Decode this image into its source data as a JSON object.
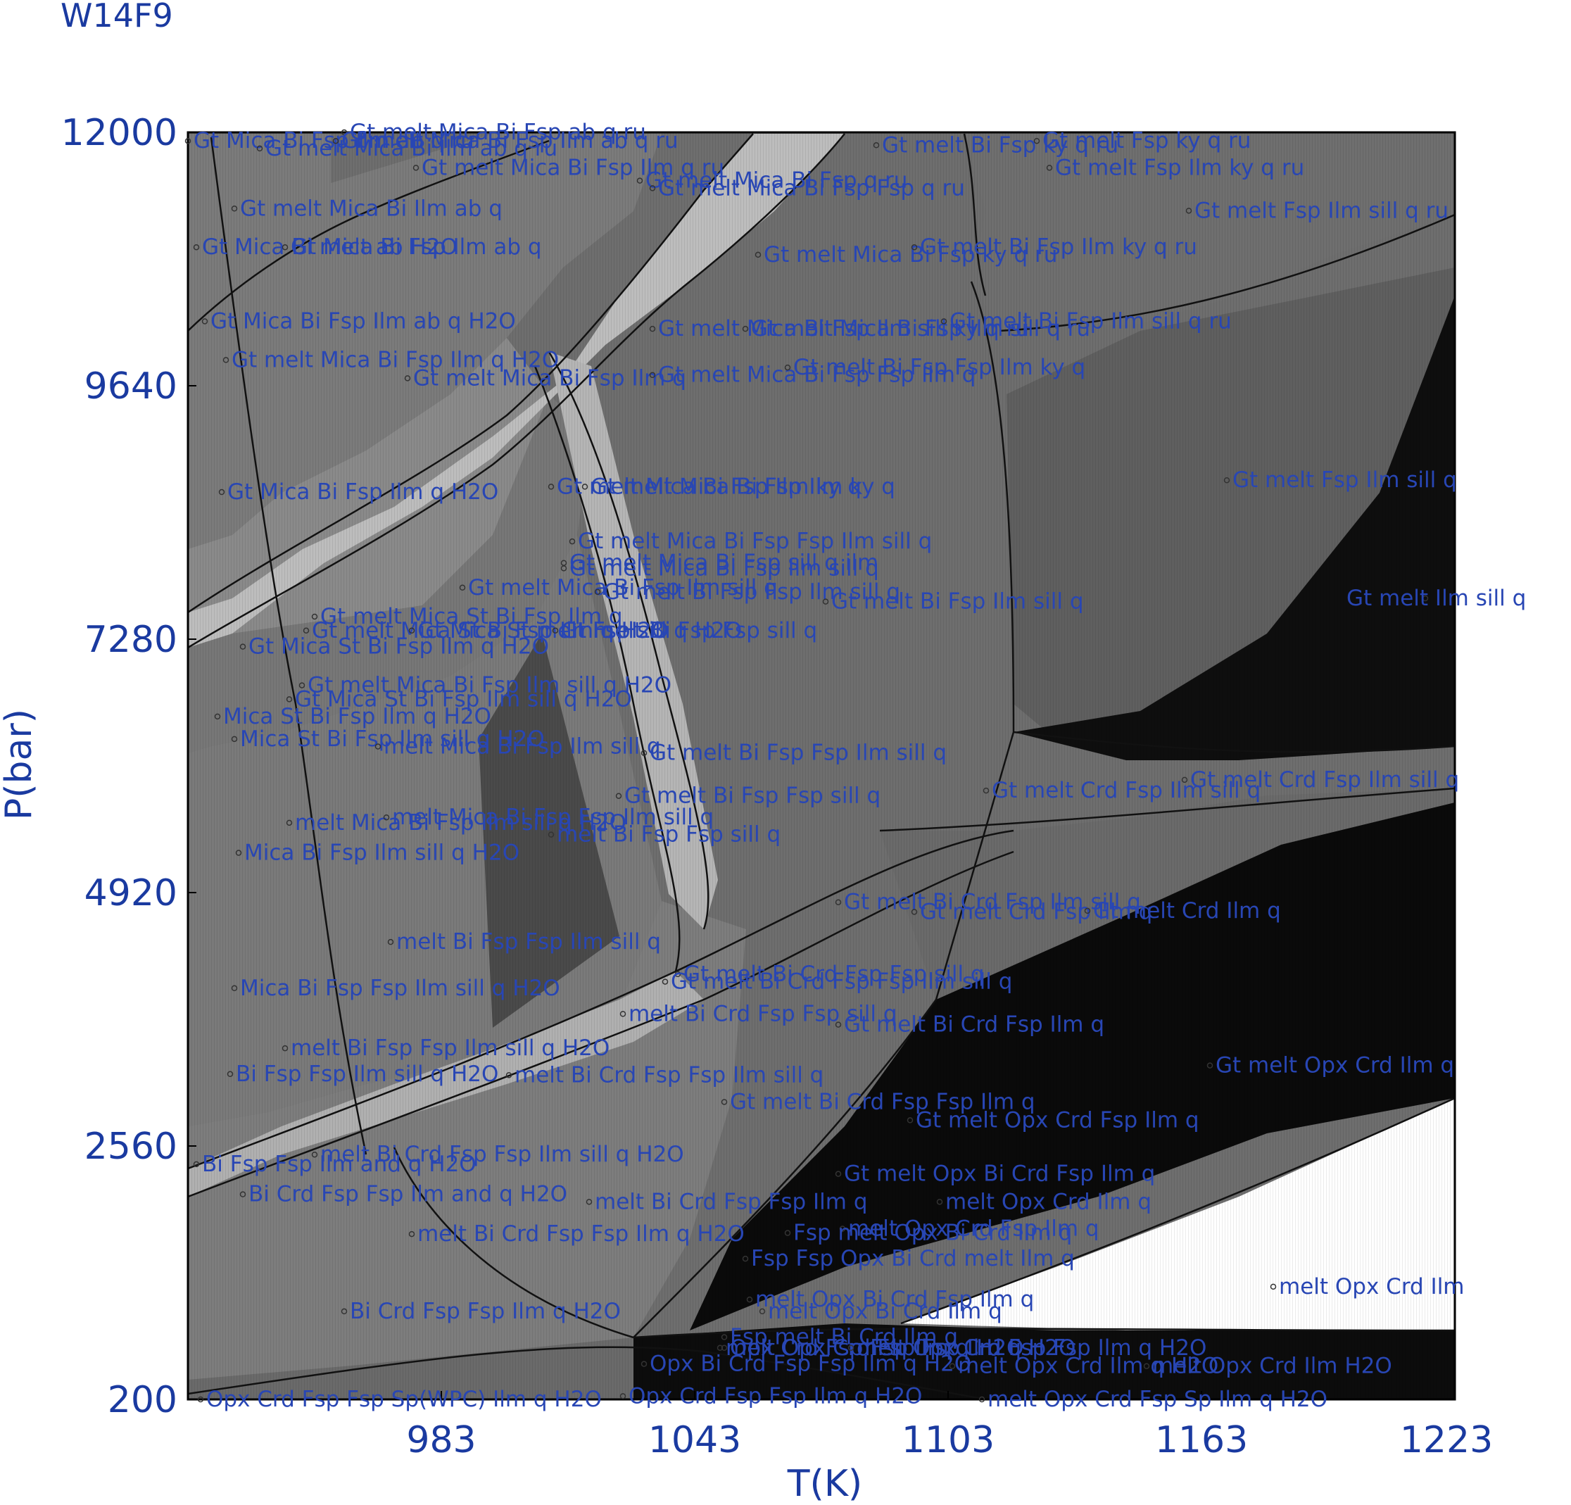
{
  "chart_data": {
    "type": "pseudosection",
    "title": "W14F9",
    "xlabel": "T(K)",
    "ylabel": "P(bar)",
    "xlim": [
      923,
      1223
    ],
    "ylim": [
      200,
      12000
    ],
    "x_ticks": [
      "983",
      "1043",
      "1103",
      "1163",
      "1223"
    ],
    "x_tick_values": [
      983,
      1043,
      1103,
      1163,
      1223
    ],
    "y_ticks": [
      "200",
      "2560",
      "4920",
      "7280",
      "9640",
      "12000"
    ],
    "y_tick_values": [
      200,
      2560,
      4920,
      7280,
      9640,
      12000
    ],
    "colors": {
      "axis_text": "#1a3aa0",
      "field_label": "#2846b4",
      "field_light": "#bdbdbd",
      "field_mid": "#7a7a7a",
      "field_dark": "#4a4a4a",
      "field_black": "#0c0c0c",
      "field_white": "#ffffff"
    },
    "fields": [
      {
        "label": "Gt Mica Bi Fsp Ilm ab q ru",
        "T": 923,
        "P": 11920
      },
      {
        "label": "Gt melt Mica Bi Fsp ab q ru",
        "T": 960,
        "P": 12000
      },
      {
        "label": "Gt melt Mica Bi Ilm ab q ru",
        "T": 940,
        "P": 11850
      },
      {
        "label": "Gt melt Mica Bi Fsp Ilm ab q ru",
        "T": 958,
        "P": 11920
      },
      {
        "label": "Gt melt Mica Bi Fsp Ilm q ru",
        "T": 977,
        "P": 11670
      },
      {
        "label": "Gt melt Mica Bi Fsp q ru",
        "T": 1030,
        "P": 11550
      },
      {
        "label": "Gt melt Mica Bi Fsp Fsp q ru",
        "T": 1033,
        "P": 11480
      },
      {
        "label": "Gt melt Bi Fsp ky q ru",
        "T": 1086,
        "P": 11880
      },
      {
        "label": "Gt melt Fsp ky q ru",
        "T": 1124,
        "P": 11920
      },
      {
        "label": "Gt melt Fsp Ilm ky q ru",
        "T": 1127,
        "P": 11670
      },
      {
        "label": "Gt melt Fsp Ilm sill q ru",
        "T": 1160,
        "P": 11270
      },
      {
        "label": "Gt melt Mica Bi Ilm ab q",
        "T": 934,
        "P": 11290
      },
      {
        "label": "Gt Mica Bi melt ab H2O",
        "T": 925,
        "P": 10930
      },
      {
        "label": "Gt Mica Bi Fsp Ilm ab q",
        "T": 946,
        "P": 10930
      },
      {
        "label": "Gt melt Mica Bi Fsp ky q ru",
        "T": 1058,
        "P": 10860
      },
      {
        "label": "Gt melt Bi Fsp Ilm ky q ru",
        "T": 1095,
        "P": 10930
      },
      {
        "label": "Gt Mica Bi Fsp Ilm ab q H2O",
        "T": 927,
        "P": 10240
      },
      {
        "label": "Gt melt Mica Bi Fsp Ilm sill ky q ru",
        "T": 1033,
        "P": 10170
      },
      {
        "label": "Gt melt Mica Bi Fsp Ilm sill q ru",
        "T": 1055,
        "P": 10170
      },
      {
        "label": "Gt melt Bi Fsp Ilm sill q ru",
        "T": 1102,
        "P": 10240
      },
      {
        "label": "Gt melt Mica Bi Fsp Ilm q H2O",
        "T": 932,
        "P": 9880
      },
      {
        "label": "Gt melt Mica Bi Fsp Ilm q",
        "T": 975,
        "P": 9710
      },
      {
        "label": "Gt melt Mica Bi Fsp Fsp Ilm q",
        "T": 1033,
        "P": 9740
      },
      {
        "label": "Gt melt Bi Fsp Fsp Ilm ky q",
        "T": 1065,
        "P": 9810
      },
      {
        "label": "Gt melt Fsp Ilm sill q",
        "T": 1169,
        "P": 8760
      },
      {
        "label": "Gt Mica Bi Fsp Ilm q H2O",
        "T": 931,
        "P": 8650
      },
      {
        "label": "Gt melt Mica Bi Fsp Ilm ky q",
        "T": 1009,
        "P": 8700
      },
      {
        "label": "Gt melt Mica Bi Fsp Ilm ky q",
        "T": 1017,
        "P": 8700
      },
      {
        "label": "Gt melt Mica Bi Fsp Fsp Ilm sill q",
        "T": 1014,
        "P": 8190
      },
      {
        "label": "Gt melt Mica Bi Fsp sill q ilm",
        "T": 1012,
        "P": 7990
      },
      {
        "label": "Gt melt Mica Bi Fsp Ilm sill q",
        "T": 1012,
        "P": 7940
      },
      {
        "label": "Gt melt Mica Bi Fsp Ilm sill q",
        "T": 988,
        "P": 7760
      },
      {
        "label": "Gt melt Bi Fsp Fsp Ilm sill q",
        "T": 1020,
        "P": 7720
      },
      {
        "label": "Gt melt Bi Fsp Ilm sill q",
        "T": 1074,
        "P": 7630
      },
      {
        "label": "Gt melt Ilm sill q",
        "T": 1216,
        "P": 7660
      },
      {
        "label": "Gt melt Mica St Bi Fsp Ilm q",
        "T": 953,
        "P": 7490
      },
      {
        "label": "Gt melt Mica St Bi Fsp Ilm q H2O",
        "T": 951,
        "P": 7360
      },
      {
        "label": "Gt Mica St melt Fsp sill q H2O",
        "T": 976,
        "P": 7360
      },
      {
        "label": "Gt melt Bi Fsp Fsp sill q",
        "T": 1010,
        "P": 7360
      },
      {
        "label": "Gt Mica St Bi Fsp Ilm q H2O",
        "T": 936,
        "P": 7210
      },
      {
        "label": "Gt melt Mica Bi Fsp Ilm sill q H2O",
        "T": 950,
        "P": 6850
      },
      {
        "label": "Gt Mica St Bi Fsp Ilm sill q H2O",
        "T": 947,
        "P": 6720
      },
      {
        "label": "Mica St Bi Fsp Ilm q H2O",
        "T": 930,
        "P": 6560
      },
      {
        "label": "Mica St Bi Fsp Ilm sill q H2O",
        "T": 934,
        "P": 6350
      },
      {
        "label": "melt Mica Bi Fsp Ilm sill q",
        "T": 968,
        "P": 6280
      },
      {
        "label": "Gt melt Bi Fsp Fsp Ilm sill q",
        "T": 1031,
        "P": 6220
      },
      {
        "label": "Gt melt Crd Fsp Ilm sill q",
        "T": 1159,
        "P": 5970
      },
      {
        "label": "Gt melt Crd Fsp Ilm sill q",
        "T": 1112,
        "P": 5870
      },
      {
        "label": "Gt melt Bi Fsp Fsp sill q",
        "T": 1025,
        "P": 5820
      },
      {
        "label": "melt Mica Bi Fsp Ilm sill q H2O",
        "T": 947,
        "P": 5570
      },
      {
        "label": "melt Mica Bi Fsp Fsp Ilm sill q",
        "T": 970,
        "P": 5620
      },
      {
        "label": "melt Bi Fsp Fsp sill q",
        "T": 1009,
        "P": 5460
      },
      {
        "label": "Mica Bi Fsp Ilm sill q H2O",
        "T": 935,
        "P": 5290
      },
      {
        "label": "Gt melt Bi Crd Fsp Ilm sill q",
        "T": 1077,
        "P": 4830
      },
      {
        "label": "Gt melt Crd Fsp Ilm q",
        "T": 1095,
        "P": 4740
      },
      {
        "label": "Gt melt Crd Ilm q",
        "T": 1136,
        "P": 4750
      },
      {
        "label": "melt Bi Fsp Fsp Ilm sill q",
        "T": 971,
        "P": 4460
      },
      {
        "label": "Gt melt Bi Crd Fsp Fsp sill q",
        "T": 1039,
        "P": 4160
      },
      {
        "label": "Gt melt Bi Crd Fsp Fsp Ilm sill q",
        "T": 1036,
        "P": 4090
      },
      {
        "label": "Mica Bi Fsp Fsp Ilm sill q H2O",
        "T": 934,
        "P": 4030
      },
      {
        "label": "melt Bi Crd Fsp Fsp sill q",
        "T": 1026,
        "P": 3790
      },
      {
        "label": "Gt melt Bi Crd Fsp Ilm q",
        "T": 1077,
        "P": 3690
      },
      {
        "label": "Gt melt Opx Crd Ilm q",
        "T": 1165,
        "P": 3310
      },
      {
        "label": "melt Bi Fsp Fsp Ilm sill q H2O",
        "T": 946,
        "P": 3470
      },
      {
        "label": "melt Bi Crd Fsp Fsp Ilm sill q",
        "T": 999,
        "P": 3220
      },
      {
        "label": "Bi Fsp Fsp Ilm sill q H2O",
        "T": 933,
        "P": 3230
      },
      {
        "label": "Gt melt Bi Crd Fsp Fsp Ilm q",
        "T": 1050,
        "P": 2970
      },
      {
        "label": "Gt melt Opx Crd Fsp Ilm q",
        "T": 1094,
        "P": 2800
      },
      {
        "label": "melt Bi Crd Fsp Fsp Ilm sill q H2O",
        "T": 953,
        "P": 2480
      },
      {
        "label": "Bi Fsp Fsp Ilm and q H2O",
        "T": 925,
        "P": 2390
      },
      {
        "label": "Gt melt Opx Bi Crd Fsp Ilm q",
        "T": 1077,
        "P": 2300
      },
      {
        "label": "Bi Crd Fsp Fsp Ilm and q H2O",
        "T": 936,
        "P": 2110
      },
      {
        "label": "melt Bi Crd Fsp Fsp Ilm q",
        "T": 1018,
        "P": 2040
      },
      {
        "label": "melt Opx Crd Ilm q",
        "T": 1101,
        "P": 2040
      },
      {
        "label": "melt Bi Crd Fsp Fsp Ilm q H2O",
        "T": 976,
        "P": 1740
      },
      {
        "label": "melt Opx Crd Fsp Ilm q",
        "T": 1078,
        "P": 1790
      },
      {
        "label": "Fsp melt Opx Bi Crd Ilm q",
        "T": 1065,
        "P": 1750
      },
      {
        "label": "Fsp Fsp Opx Bi Crd melt Ilm q",
        "T": 1055,
        "P": 1510
      },
      {
        "label": "melt Opx Crd Ilm",
        "T": 1180,
        "P": 1250
      },
      {
        "label": "melt Opx Bi Crd Fsp Ilm q",
        "T": 1056,
        "P": 1130
      },
      {
        "label": "melt Opx Bi Crd Ilm q",
        "T": 1059,
        "P": 1020
      },
      {
        "label": "Bi Crd Fsp Fsp Ilm q H2O",
        "T": 960,
        "P": 1020
      },
      {
        "label": "Fsp melt Bi Crd Ilm q",
        "T": 1050,
        "P": 780
      },
      {
        "label": "Opx Bi Crd Fsp Fsp Ilm q H2O",
        "T": 1031,
        "P": 530
      },
      {
        "label": "melt Opx Crd Ilm q H2O",
        "T": 1104,
        "P": 510
      },
      {
        "label": "melt Opx Crd Ilm H2O",
        "T": 1150,
        "P": 510
      },
      {
        "label": "Opx Crd Fsp Fsp Ilm q H2O",
        "T": 1026,
        "P": 230
      },
      {
        "label": "Opx Crd Fsp Fsp Sp(WPC) Ilm q H2O",
        "T": 926,
        "P": 200
      },
      {
        "label": "melt Opx Crd Fsp Sp Ilm q H2O",
        "T": 1111,
        "P": 200
      },
      {
        "label": "melt Opx Crd Fsp Fsp Ilm q H2O",
        "T": 1049,
        "P": 680
      },
      {
        "label": "Opx Crd Fsp Fsp Ilm q H2O",
        "T": 1050,
        "P": 680
      },
      {
        "label": "melt Opx Crd Fsp Fsp Ilm q H2O",
        "T": 1080,
        "P": 680
      }
    ]
  }
}
